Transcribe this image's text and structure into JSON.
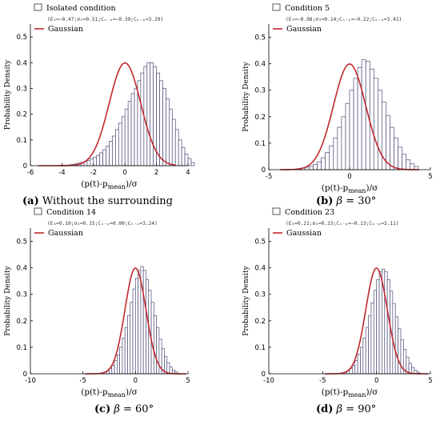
{
  "colors": {
    "bar_edge": "#4a4a78",
    "bar_fill": "#ffffff",
    "gaussian": "#c0282d",
    "axis": "#000000"
  },
  "chart_data": [
    {
      "type": "bar",
      "panel": "a",
      "ylabel": "Probability Density",
      "xlabel_parts": [
        "(p(t)-p",
        "mean",
        ")/σ"
      ],
      "xticks": [
        "-6",
        "-4",
        "-2",
        "0",
        "2",
        "4"
      ],
      "yticks": [
        "0",
        "0.1",
        "0.2",
        "0.3",
        "0.4",
        "0.5"
      ],
      "xlim": [
        -6,
        4
      ],
      "ylim": [
        0,
        0.55
      ],
      "legend": {
        "box_label": "Isolated condition",
        "stats": "(E₃=−0.47;σ₃=0.51;Cₛ₋ₚ=−0.39;Cₖ₋ₚ=3.29)",
        "line_label": "Gaussian"
      },
      "histogram": {
        "start": -4.2,
        "width": 0.2,
        "values": [
          0.001,
          0.001,
          0.002,
          0.003,
          0.005,
          0.007,
          0.01,
          0.013,
          0.017,
          0.021,
          0.027,
          0.033,
          0.04,
          0.05,
          0.062,
          0.076,
          0.095,
          0.115,
          0.14,
          0.165,
          0.19,
          0.22,
          0.25,
          0.28,
          0.3,
          0.33,
          0.36,
          0.385,
          0.4,
          0.4,
          0.385,
          0.36,
          0.33,
          0.3,
          0.26,
          0.22,
          0.18,
          0.14,
          0.1,
          0.07,
          0.045,
          0.028,
          0.012
        ]
      },
      "gaussian": {
        "mean": 0,
        "sd": 1,
        "x_range": [
          -5.5,
          3.2
        ]
      },
      "caption": {
        "label": "(a)",
        "text": " Without the surrounding"
      }
    },
    {
      "type": "bar",
      "panel": "b",
      "ylabel": "Probability Density",
      "xlabel_parts": [
        "(p(t)-p",
        "mean",
        ")/σ"
      ],
      "xticks": [
        "-5",
        "0",
        "5"
      ],
      "yticks": [
        "0",
        "0.1",
        "0.2",
        "0.3",
        "0.4",
        "0.5"
      ],
      "xlim": [
        -5,
        5
      ],
      "ylim": [
        0,
        0.55
      ],
      "legend": {
        "box_label": "Condition 5",
        "stats": "(E₃=−0.08;σ₃=0.14;Cₛ₋ₚ=−0.22;Cₖ₋ₚ=3.41)",
        "line_label": "Gaussian"
      },
      "histogram": {
        "start": -4.0,
        "width": 0.25,
        "values": [
          0.001,
          0.001,
          0.002,
          0.004,
          0.006,
          0.009,
          0.013,
          0.02,
          0.03,
          0.045,
          0.065,
          0.09,
          0.12,
          0.16,
          0.2,
          0.25,
          0.3,
          0.345,
          0.385,
          0.415,
          0.41,
          0.38,
          0.345,
          0.3,
          0.255,
          0.205,
          0.16,
          0.12,
          0.085,
          0.058,
          0.037,
          0.022,
          0.012
        ]
      },
      "gaussian": {
        "mean": 0,
        "sd": 1,
        "x_range": [
          -4.3,
          4.3
        ]
      },
      "caption": {
        "label": "(b)",
        "beta": "β",
        "text": " = 30°"
      }
    },
    {
      "type": "bar",
      "panel": "c",
      "ylabel": "Probability Density",
      "xlabel_parts": [
        "(p(t)-p",
        "mean",
        ")/σ"
      ],
      "xticks": [
        "-10",
        "-5",
        "0",
        "5"
      ],
      "yticks": [
        "0",
        "0.1",
        "0.2",
        "0.3",
        "0.4",
        "0.5"
      ],
      "xlim": [
        -10,
        5
      ],
      "ylim": [
        0,
        0.55
      ],
      "legend": {
        "box_label": "Condition 14",
        "stats": "(E₃=0.10;σ₃=0.15;Cₛ₋ₚ=0.00;Cₖ₋ₚ=3.24)",
        "line_label": "Gaussian"
      },
      "histogram": {
        "start": -3.75,
        "width": 0.25,
        "values": [
          0.001,
          0.002,
          0.004,
          0.007,
          0.012,
          0.02,
          0.032,
          0.05,
          0.072,
          0.1,
          0.135,
          0.175,
          0.22,
          0.27,
          0.32,
          0.36,
          0.39,
          0.405,
          0.39,
          0.355,
          0.315,
          0.27,
          0.22,
          0.175,
          0.13,
          0.095,
          0.065,
          0.042,
          0.025,
          0.014,
          0.007
        ]
      },
      "gaussian": {
        "mean": 0,
        "sd": 1,
        "x_range": [
          -4.8,
          4.8
        ]
      },
      "caption": {
        "label": "(c)",
        "beta": "β",
        "text": " = 60°"
      }
    },
    {
      "type": "bar",
      "panel": "d",
      "ylabel": "Probability Density",
      "xlabel_parts": [
        "(p(t)-p",
        "mean",
        ")/σ"
      ],
      "xticks": [
        "-10",
        "-5",
        "0",
        "5"
      ],
      "yticks": [
        "0",
        "0.1",
        "0.2",
        "0.3",
        "0.4",
        "0.5"
      ],
      "xlim": [
        -10,
        5
      ],
      "ylim": [
        0,
        0.55
      ],
      "legend": {
        "box_label": "Condition 23",
        "stats": "(E₃=0.21;σ₃=0.23;Cₛ₋ₚ=−0.13;Cₖ₋ₚ=3.11)",
        "line_label": "Gaussian"
      },
      "histogram": {
        "start": -3.75,
        "width": 0.25,
        "values": [
          0.001,
          0.002,
          0.004,
          0.007,
          0.012,
          0.02,
          0.032,
          0.05,
          0.073,
          0.1,
          0.135,
          0.175,
          0.22,
          0.268,
          0.315,
          0.355,
          0.385,
          0.395,
          0.385,
          0.355,
          0.312,
          0.265,
          0.215,
          0.17,
          0.128,
          0.092,
          0.063,
          0.04,
          0.024,
          0.013,
          0.006
        ]
      },
      "gaussian": {
        "mean": 0,
        "sd": 1,
        "x_range": [
          -4.8,
          4.8
        ]
      },
      "caption": {
        "label": "(d)",
        "beta": "β",
        "text": " = 90°"
      }
    }
  ]
}
